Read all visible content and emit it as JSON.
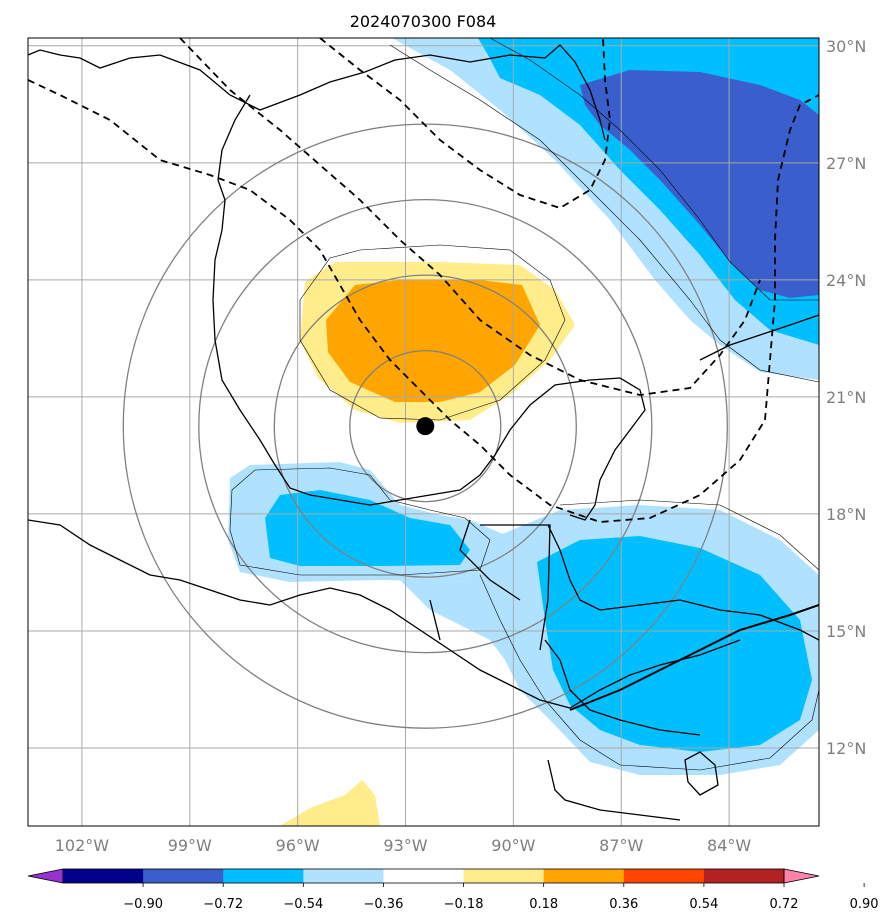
{
  "title": "2024070300 F084",
  "map": {
    "lon_range": [
      -103.5,
      -81.5
    ],
    "lat_range": [
      10,
      30.2
    ],
    "lon_ticks": [
      {
        "value": -102,
        "label": "102°W"
      },
      {
        "value": -99,
        "label": "99°W"
      },
      {
        "value": -96,
        "label": "96°W"
      },
      {
        "value": -93,
        "label": "93°W"
      },
      {
        "value": -90,
        "label": "90°W"
      },
      {
        "value": -87,
        "label": "87°W"
      },
      {
        "value": -84,
        "label": "84°W"
      }
    ],
    "lat_ticks": [
      {
        "value": 30,
        "label": "30°N"
      },
      {
        "value": 27,
        "label": "27°N"
      },
      {
        "value": 24,
        "label": "24°N"
      },
      {
        "value": 21,
        "label": "21°N"
      },
      {
        "value": 18,
        "label": "18°N"
      },
      {
        "value": 15,
        "label": "15°N"
      },
      {
        "value": 12,
        "label": "12°N"
      }
    ],
    "grid": true,
    "center_point": {
      "lon": -92.45,
      "lat": 20.25
    },
    "range_rings_deg": [
      2,
      4,
      6,
      8
    ]
  },
  "colorbar": {
    "orientation": "horizontal",
    "extend": "both",
    "colors": [
      "#9932cc",
      "#00008b",
      "#3a5fcd",
      "#00bfff",
      "#b0e2ff",
      "#ffffff",
      "#ffec8b",
      "#ffa500",
      "#ff4500",
      "#b22222",
      "#ff82ab"
    ],
    "ticks": [
      "−0.90",
      "−0.72",
      "−0.54",
      "−0.36",
      "−0.18",
      "0.18",
      "0.36",
      "0.54",
      "0.72",
      "0.90"
    ]
  },
  "colors": {
    "grid": "#a9a9a9",
    "ring": "#808080",
    "coast": "#000000"
  }
}
